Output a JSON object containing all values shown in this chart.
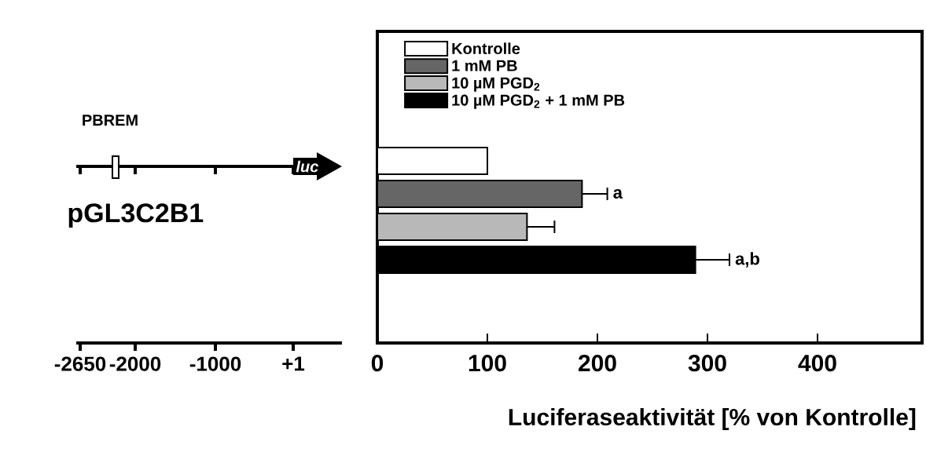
{
  "chart_data": [
    {
      "type": "other",
      "annotations": [
        "PBREM",
        "pGL3C2B1",
        "luc",
        "-2650",
        "-2000",
        "-1000",
        "+1"
      ]
    },
    {
      "type": "bar",
      "orientation": "horizontal",
      "categories": [
        null
      ],
      "xlim": [
        0,
        495
      ],
      "xticks": [
        0,
        100,
        200,
        300,
        400
      ],
      "xlabel": "Luciferaseaktivität [% von Kontrolle]",
      "legend": "top left",
      "series": [
        {
          "name": "Kontrolle",
          "color": "#ffffff",
          "values": [
            100
          ]
        },
        {
          "name": "1 mM PB",
          "color": "#666666",
          "values": [
            186
          ],
          "errors": [
            23
          ],
          "value_labels": [
            "a"
          ]
        },
        {
          "name": "10 µM PGD$_{2}$",
          "color": "#b8b8b8",
          "values": [
            136
          ],
          "errors": [
            25
          ]
        },
        {
          "name": "10 µM PGD$_{2}$ + 1 mM PB",
          "color": "#000000",
          "values": [
            289
          ],
          "errors": [
            31
          ],
          "value_labels": [
            "a,b"
          ]
        }
      ]
    }
  ]
}
